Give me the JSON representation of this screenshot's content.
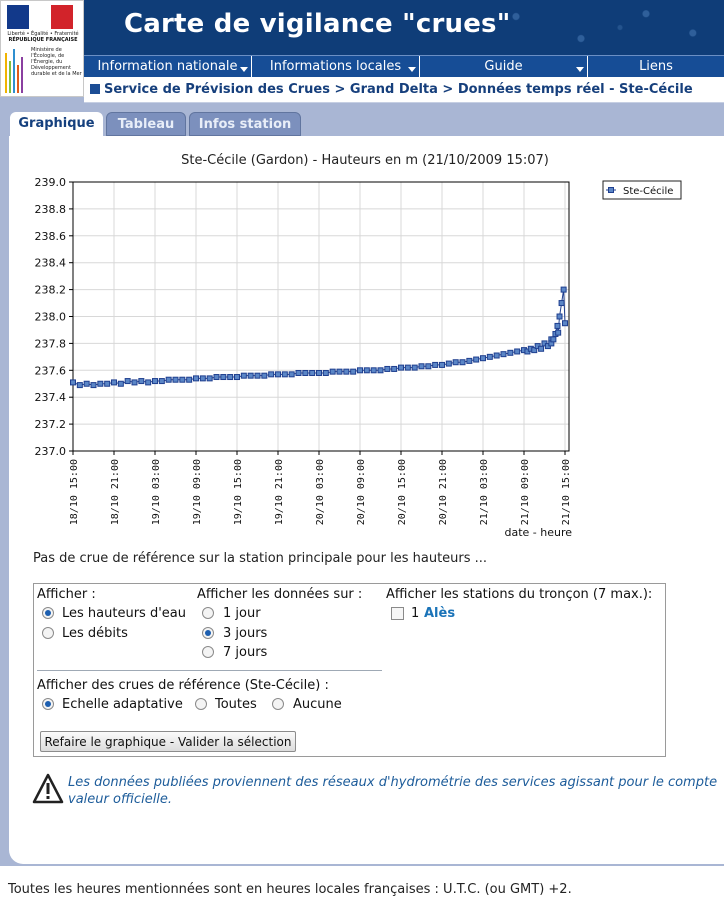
{
  "logo": {
    "motto": "Liberté • Égalité • Fraternité",
    "republic": "RÉPUBLIQUE FRANÇAISE",
    "ministry": "Ministère de l'Écologie, de l'Énergie, du Développement durable et de la Mer"
  },
  "header": {
    "title": "Carte de vigilance \"crues\""
  },
  "menu": {
    "items": [
      {
        "label": "Information nationale"
      },
      {
        "label": "Informations locales"
      },
      {
        "label": "Guide"
      },
      {
        "label": "Liens"
      }
    ]
  },
  "breadcrumb": "Service de Prévision des Crues > Grand Delta > Données temps réel - Ste-Cécile",
  "tabs": [
    {
      "label": "Graphique",
      "active": true
    },
    {
      "label": "Tableau",
      "active": false
    },
    {
      "label": "Infos station",
      "active": false
    }
  ],
  "chart_data": {
    "type": "line",
    "title": "Ste-Cécile (Gardon) - Hauteurs en m (21/10/2009 15:07)",
    "xlabel": "date - heure",
    "ylabel": "",
    "ylim": [
      237.0,
      239.0
    ],
    "yticks": [
      "239.0",
      "238.8",
      "238.6",
      "238.4",
      "238.2",
      "238.0",
      "237.8",
      "237.6",
      "237.4",
      "237.2",
      "237.0"
    ],
    "xticks": [
      "18/10 15:00",
      "18/10 21:00",
      "19/10 03:00",
      "19/10 09:00",
      "19/10 15:00",
      "19/10 21:00",
      "20/10 03:00",
      "20/10 09:00",
      "20/10 15:00",
      "20/10 21:00",
      "21/10 03:00",
      "21/10 09:00",
      "21/10 15:00"
    ],
    "x_unit": "hours since 18/10 15:00",
    "legend": "top-right",
    "grid": true,
    "series_color": "#1f3f8f",
    "series": [
      {
        "name": "Ste-Cécile",
        "x": [
          0,
          1,
          2,
          3,
          4,
          5,
          6,
          7,
          8,
          9,
          10,
          11,
          12,
          13,
          14,
          15,
          16,
          17,
          18,
          19,
          20,
          21,
          22,
          23,
          24,
          25,
          26,
          27,
          28,
          29,
          30,
          31,
          32,
          33,
          34,
          35,
          36,
          37,
          38,
          39,
          40,
          41,
          42,
          43,
          44,
          45,
          46,
          47,
          48,
          49,
          50,
          51,
          52,
          53,
          54,
          55,
          56,
          57,
          58,
          59,
          60,
          61,
          62,
          63,
          64,
          65,
          66,
          67,
          68,
          69,
          70,
          71,
          72,
          66.5,
          67.5,
          68.5,
          69.5,
          70,
          70.3,
          70.6,
          70.9,
          71.2,
          71.5,
          71.8
        ],
        "values": [
          237.51,
          237.49,
          237.5,
          237.49,
          237.5,
          237.5,
          237.51,
          237.5,
          237.52,
          237.51,
          237.52,
          237.51,
          237.52,
          237.52,
          237.53,
          237.53,
          237.53,
          237.53,
          237.54,
          237.54,
          237.54,
          237.55,
          237.55,
          237.55,
          237.55,
          237.56,
          237.56,
          237.56,
          237.56,
          237.57,
          237.57,
          237.57,
          237.57,
          237.58,
          237.58,
          237.58,
          237.58,
          237.58,
          237.59,
          237.59,
          237.59,
          237.59,
          237.6,
          237.6,
          237.6,
          237.6,
          237.61,
          237.61,
          237.62,
          237.62,
          237.62,
          237.63,
          237.63,
          237.64,
          237.64,
          237.65,
          237.66,
          237.66,
          237.67,
          237.68,
          237.69,
          237.7,
          237.71,
          237.72,
          237.73,
          237.74,
          237.75,
          237.76,
          237.78,
          237.8,
          237.83,
          237.88,
          237.95,
          237.74,
          237.75,
          237.76,
          237.78,
          237.8,
          237.83,
          237.87,
          237.93,
          238.0,
          238.1,
          238.2
        ]
      }
    ]
  },
  "note": "Pas de crue de référence sur la station principale pour les hauteurs ...",
  "form": {
    "afficher_label": "Afficher :",
    "afficher_options": [
      {
        "label": "Les hauteurs d'eau",
        "checked": true
      },
      {
        "label": "Les débits",
        "checked": false
      }
    ],
    "periode_label": "Afficher les données sur :",
    "periode_options": [
      {
        "label": "1 jour",
        "checked": false
      },
      {
        "label": "3 jours",
        "checked": true
      },
      {
        "label": "7 jours",
        "checked": false
      }
    ],
    "stations_label": "Afficher les stations du tronçon (7 max.):",
    "station_number": "1",
    "station_name": "Alès",
    "crues_label": "Afficher des crues de référence (Ste-Cécile) :",
    "crues_options": [
      {
        "label": "Echelle adaptative",
        "checked": true
      },
      {
        "label": "Toutes",
        "checked": false
      },
      {
        "label": "Aucune",
        "checked": false
      }
    ],
    "button_label": "Refaire le graphique - Valider la sélection"
  },
  "warning": {
    "line1": "Les données publiées proviennent des réseaux d'hydrométrie des services agissant pour le compte",
    "line2": "valeur officielle."
  },
  "footer": "Toutes les heures mentionnées sont en heures locales françaises : U.T.C. (ou GMT) +2."
}
